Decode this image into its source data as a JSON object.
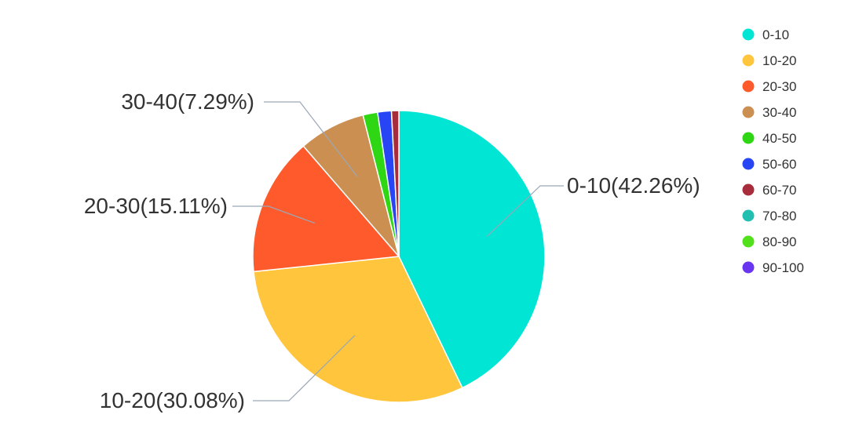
{
  "chart_data": {
    "type": "pie",
    "title": "",
    "legend_position": "top-right",
    "slices": [
      {
        "label": "0-10",
        "value": 42.26,
        "color": "#00E5D4"
      },
      {
        "label": "10-20",
        "value": 30.08,
        "color": "#FFC53D"
      },
      {
        "label": "20-30",
        "value": 15.11,
        "color": "#FF5A2B"
      },
      {
        "label": "30-40",
        "value": 7.29,
        "color": "#CC8F52"
      },
      {
        "label": "40-50",
        "value": 1.6,
        "color": "#2ED614"
      },
      {
        "label": "50-60",
        "value": 1.5,
        "color": "#2745F5"
      },
      {
        "label": "60-70",
        "value": 0.8,
        "color": "#A82D3C"
      },
      {
        "label": "70-80",
        "value": 0.0,
        "color": "#20BFB0"
      },
      {
        "label": "80-90",
        "value": 0.0,
        "color": "#52E01A"
      },
      {
        "label": "90-100",
        "value": 0.0,
        "color": "#6A35F0"
      }
    ],
    "data_labels": [
      {
        "slice": "0-10",
        "text": "0-10(42.26%)"
      },
      {
        "slice": "10-20",
        "text": "10-20(30.08%)"
      },
      {
        "slice": "20-30",
        "text": "20-30(15.11%)"
      },
      {
        "slice": "30-40",
        "text": "30-40(7.29%)"
      }
    ]
  }
}
